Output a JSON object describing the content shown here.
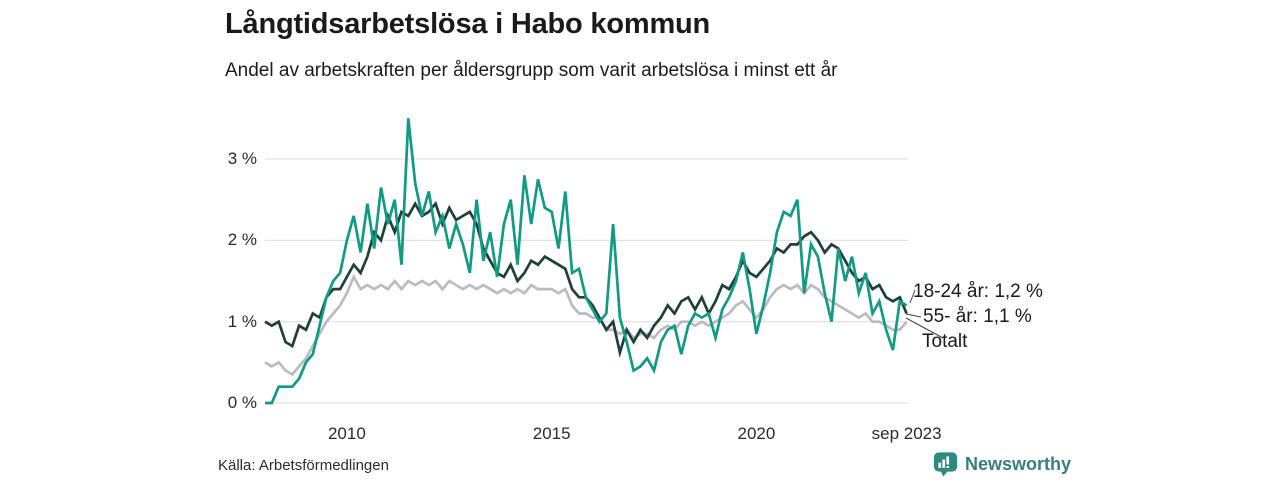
{
  "header": {
    "title": "Långtidsarbetslösa i Habo kommun",
    "subtitle": "Andel av arbetskraften per åldersgrupp som varit arbetslösa i minst ett år"
  },
  "footer": {
    "source": "Källa: Arbetsförmedlingen",
    "brand": "Newsworthy"
  },
  "colors": {
    "youth_line": "#119a84",
    "senior_line": "#1e3f3a",
    "total_line": "#bcbac4",
    "gridline": "#e4e3e8",
    "leader": "#444444",
    "brand_icon": "#2c8a7e",
    "brand_text": "#36807c"
  },
  "chart_data": {
    "type": "line",
    "title": "Långtidsarbetslösa i Habo kommun",
    "subtitle": "Andel av arbetskraften per åldersgrupp som varit arbetslösa i minst ett år",
    "unit": "% av arbetskraften",
    "x_start_year": 2008,
    "x_interval_months": 2,
    "x_end": "sep 2023",
    "ylim": [
      0,
      3.6
    ],
    "grid": true,
    "y_ticks": [
      {
        "v": 0,
        "label": "0 %"
      },
      {
        "v": 1,
        "label": "1 %"
      },
      {
        "v": 2,
        "label": "2 %"
      },
      {
        "v": 3,
        "label": "3 %"
      }
    ],
    "x_ticks": [
      {
        "t": 2010,
        "label": "2010"
      },
      {
        "t": 2015,
        "label": "2015"
      },
      {
        "t": 2020,
        "label": "2020"
      },
      {
        "t": 2023.667,
        "label": "sep 2023"
      }
    ],
    "series": [
      {
        "key": "18-24-ar",
        "name": "18-24 år",
        "end_label": "18-24 år: 1,2 %",
        "latest": "1,2 %",
        "color": "#119a84",
        "values": [
          0.0,
          0.0,
          0.2,
          0.2,
          0.2,
          0.3,
          0.5,
          0.6,
          0.95,
          1.3,
          1.5,
          1.6,
          2.0,
          2.3,
          1.85,
          2.45,
          1.9,
          2.65,
          2.2,
          2.5,
          1.7,
          3.5,
          2.7,
          2.3,
          2.6,
          2.1,
          2.3,
          1.9,
          2.2,
          1.95,
          1.6,
          2.5,
          1.75,
          2.1,
          1.55,
          2.2,
          2.5,
          1.7,
          2.8,
          2.2,
          2.75,
          2.4,
          2.35,
          1.9,
          2.6,
          1.6,
          1.65,
          1.3,
          1.15,
          1.0,
          1.1,
          2.2,
          1.05,
          0.75,
          0.4,
          0.45,
          0.55,
          0.4,
          0.75,
          0.9,
          0.95,
          0.6,
          0.95,
          1.1,
          1.05,
          1.1,
          0.8,
          1.15,
          1.3,
          1.5,
          1.85,
          1.4,
          0.85,
          1.2,
          1.6,
          2.1,
          2.35,
          2.3,
          2.5,
          1.35,
          1.95,
          1.8,
          1.35,
          1.0,
          1.9,
          1.5,
          1.8,
          1.35,
          1.6,
          1.1,
          1.25,
          0.9,
          0.65,
          1.25,
          1.2
        ]
      },
      {
        "key": "55-ar",
        "name": "55- år",
        "end_label": "55- år: 1,1 %",
        "latest": "1,1 %",
        "color": "#1e3f3a",
        "values": [
          1.0,
          0.95,
          1.0,
          0.75,
          0.7,
          0.95,
          0.9,
          1.1,
          1.05,
          1.3,
          1.4,
          1.4,
          1.55,
          1.7,
          1.6,
          1.8,
          2.1,
          2.0,
          2.3,
          2.1,
          2.35,
          2.3,
          2.45,
          2.3,
          2.35,
          2.45,
          2.2,
          2.4,
          2.25,
          2.3,
          2.35,
          2.2,
          1.9,
          1.75,
          1.6,
          1.55,
          1.7,
          1.5,
          1.6,
          1.75,
          1.7,
          1.8,
          1.75,
          1.7,
          1.65,
          1.4,
          1.3,
          1.3,
          1.2,
          1.05,
          0.9,
          1.0,
          0.62,
          0.9,
          0.75,
          0.9,
          0.8,
          0.95,
          1.05,
          1.2,
          1.1,
          1.25,
          1.3,
          1.15,
          1.3,
          1.1,
          1.25,
          1.45,
          1.4,
          1.55,
          1.75,
          1.6,
          1.55,
          1.65,
          1.75,
          1.9,
          1.85,
          1.95,
          1.95,
          2.05,
          2.1,
          2.0,
          1.85,
          1.95,
          1.9,
          1.75,
          1.6,
          1.5,
          1.55,
          1.4,
          1.45,
          1.3,
          1.25,
          1.3,
          1.1
        ]
      },
      {
        "key": "totalt",
        "name": "Totalt",
        "end_label": "Totalt",
        "latest": "1,0 %",
        "color": "#bcbac4",
        "values": [
          0.5,
          0.45,
          0.5,
          0.4,
          0.35,
          0.45,
          0.55,
          0.7,
          0.85,
          1.0,
          1.1,
          1.2,
          1.35,
          1.55,
          1.4,
          1.45,
          1.4,
          1.45,
          1.4,
          1.5,
          1.4,
          1.5,
          1.45,
          1.5,
          1.45,
          1.5,
          1.4,
          1.5,
          1.45,
          1.4,
          1.45,
          1.4,
          1.45,
          1.4,
          1.35,
          1.4,
          1.35,
          1.4,
          1.35,
          1.45,
          1.4,
          1.4,
          1.4,
          1.35,
          1.4,
          1.2,
          1.1,
          1.1,
          1.05,
          1.05,
          0.9,
          0.9,
          0.85,
          0.9,
          0.8,
          0.85,
          0.85,
          0.8,
          0.9,
          0.95,
          0.9,
          1.0,
          1.0,
          0.95,
          1.0,
          0.95,
          1.0,
          1.05,
          1.1,
          1.2,
          1.25,
          1.15,
          1.05,
          1.15,
          1.3,
          1.4,
          1.45,
          1.4,
          1.45,
          1.35,
          1.45,
          1.4,
          1.3,
          1.25,
          1.2,
          1.15,
          1.1,
          1.05,
          1.1,
          1.0,
          1.0,
          0.95,
          0.9,
          0.9,
          1.0
        ]
      }
    ]
  }
}
